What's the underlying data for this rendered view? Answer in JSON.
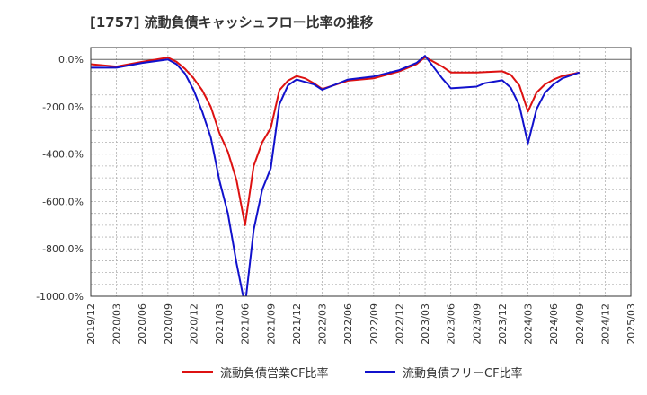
{
  "chart_data": {
    "type": "line",
    "title": "[1757]  流動負債キャッシュフロー比率の推移",
    "xlabel": "",
    "ylabel": "",
    "ylim": [
      -1000,
      50
    ],
    "y_ticks": [
      0,
      -200,
      -400,
      -600,
      -800,
      -1000
    ],
    "y_tick_labels": [
      "0.0%",
      "-200.0%",
      "-400.0%",
      "-600.0%",
      "-800.0%",
      "-1000.0%"
    ],
    "x_ticks": [
      "2019/12",
      "2020/03",
      "2020/06",
      "2020/09",
      "2020/12",
      "2021/03",
      "2021/06",
      "2021/09",
      "2021/12",
      "2022/03",
      "2022/06",
      "2022/09",
      "2022/12",
      "2023/03",
      "2023/06",
      "2023/09",
      "2023/12",
      "2024/03",
      "2024/06",
      "2024/09",
      "2024/12",
      "2025/03"
    ],
    "grid": true,
    "series": [
      {
        "name": "流動負債営業CF比率",
        "color": "#dd1111",
        "points": [
          [
            "2019/12",
            -20
          ],
          [
            "2020/03",
            -30
          ],
          [
            "2020/06",
            -10
          ],
          [
            "2020/09",
            8
          ],
          [
            "2020/10",
            -10
          ],
          [
            "2020/11",
            -40
          ],
          [
            "2020/12",
            -80
          ],
          [
            "2021/01",
            -130
          ],
          [
            "2021/02",
            -200
          ],
          [
            "2021/03",
            -310
          ],
          [
            "2021/04",
            -390
          ],
          [
            "2021/05",
            -510
          ],
          [
            "2021/06",
            -700
          ],
          [
            "2021/07",
            -450
          ],
          [
            "2021/08",
            -350
          ],
          [
            "2021/09",
            -290
          ],
          [
            "2021/10",
            -130
          ],
          [
            "2021/11",
            -90
          ],
          [
            "2021/12",
            -70
          ],
          [
            "2022/01",
            -80
          ],
          [
            "2022/02",
            -100
          ],
          [
            "2022/03",
            -125
          ],
          [
            "2022/06",
            -90
          ],
          [
            "2022/09",
            -80
          ],
          [
            "2022/12",
            -50
          ],
          [
            "2023/02",
            -20
          ],
          [
            "2023/03",
            10
          ],
          [
            "2023/05",
            -30
          ],
          [
            "2023/06",
            -55
          ],
          [
            "2023/09",
            -55
          ],
          [
            "2023/12",
            -50
          ],
          [
            "2024/01",
            -65
          ],
          [
            "2024/02",
            -110
          ],
          [
            "2024/03",
            -220
          ],
          [
            "2024/04",
            -140
          ],
          [
            "2024/05",
            -105
          ],
          [
            "2024/06",
            -85
          ],
          [
            "2024/07",
            -70
          ],
          [
            "2024/09",
            -55
          ]
        ]
      },
      {
        "name": "流動負債フリーCF比率",
        "color": "#1111cc",
        "points": [
          [
            "2019/12",
            -35
          ],
          [
            "2020/03",
            -35
          ],
          [
            "2020/06",
            -15
          ],
          [
            "2020/09",
            0
          ],
          [
            "2020/10",
            -20
          ],
          [
            "2020/11",
            -60
          ],
          [
            "2020/12",
            -130
          ],
          [
            "2021/01",
            -220
          ],
          [
            "2021/02",
            -330
          ],
          [
            "2021/03",
            -510
          ],
          [
            "2021/04",
            -650
          ],
          [
            "2021/05",
            -860
          ],
          [
            "2021/06",
            -1040
          ],
          [
            "2021/07",
            -720
          ],
          [
            "2021/08",
            -550
          ],
          [
            "2021/09",
            -460
          ],
          [
            "2021/10",
            -190
          ],
          [
            "2021/11",
            -110
          ],
          [
            "2021/12",
            -85
          ],
          [
            "2022/01",
            -95
          ],
          [
            "2022/02",
            -105
          ],
          [
            "2022/03",
            -128
          ],
          [
            "2022/06",
            -85
          ],
          [
            "2022/09",
            -72
          ],
          [
            "2022/12",
            -45
          ],
          [
            "2023/02",
            -15
          ],
          [
            "2023/03",
            15
          ],
          [
            "2023/05",
            -80
          ],
          [
            "2023/06",
            -122
          ],
          [
            "2023/09",
            -115
          ],
          [
            "2023/10",
            -100
          ],
          [
            "2023/12",
            -88
          ],
          [
            "2024/01",
            -120
          ],
          [
            "2024/02",
            -195
          ],
          [
            "2024/03",
            -355
          ],
          [
            "2024/04",
            -210
          ],
          [
            "2024/05",
            -140
          ],
          [
            "2024/06",
            -105
          ],
          [
            "2024/07",
            -80
          ],
          [
            "2024/09",
            -55
          ]
        ]
      }
    ]
  }
}
